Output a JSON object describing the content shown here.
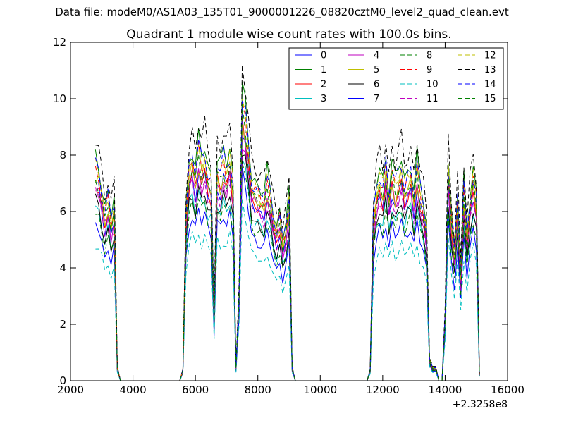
{
  "suptitle": "Data file: modeM0/AS1A03_135T01_9000001226_08820cztM0_level2_quad_clean.evt",
  "chart_data": {
    "type": "line",
    "title": "Quadrant 1 module wise count rates with 100.0s bins.",
    "xlabel": "",
    "ylabel": "",
    "xlim": [
      2000,
      16000
    ],
    "ylim": [
      0,
      12
    ],
    "xticks": [
      "2000",
      "4000",
      "6000",
      "8000",
      "10000",
      "12000",
      "14000",
      "16000"
    ],
    "yticks": [
      "0",
      "2",
      "4",
      "6",
      "8",
      "10",
      "12"
    ],
    "x_offset_label": "+2.3258e8",
    "legend_position": "top-right",
    "legend_columns": 4,
    "x": [
      2800,
      2900,
      3000,
      3100,
      3200,
      3300,
      3400,
      3500,
      3600,
      3700,
      3800,
      3900,
      4000,
      4100,
      4200,
      4300,
      4400,
      4500,
      4600,
      4700,
      4800,
      4900,
      5000,
      5100,
      5200,
      5300,
      5400,
      5500,
      5600,
      5700,
      5800,
      5900,
      6000,
      6100,
      6200,
      6300,
      6400,
      6500,
      6600,
      6700,
      6800,
      6900,
      7000,
      7100,
      7200,
      7300,
      7400,
      7500,
      7600,
      7700,
      7800,
      7900,
      8000,
      8100,
      8200,
      8300,
      8400,
      8500,
      8600,
      8700,
      8800,
      8900,
      9000,
      9100,
      9200,
      9300,
      9400,
      9500,
      9600,
      9700,
      9800,
      9900,
      10000,
      10100,
      10200,
      10300,
      10400,
      10500,
      10600,
      10700,
      10800,
      10900,
      11000,
      11100,
      11200,
      11300,
      11400,
      11500,
      11600,
      11700,
      11800,
      11900,
      12000,
      12100,
      12200,
      12300,
      12400,
      12500,
      12600,
      12700,
      12800,
      12900,
      13000,
      13100,
      13200,
      13300,
      13400,
      13500,
      13600,
      13700,
      13800,
      13900,
      14000,
      14100,
      14200,
      14300,
      14400,
      14500,
      14600,
      14700,
      14800,
      14900,
      15000,
      15100,
      15200
    ],
    "profile": [
      1.0,
      0.97,
      0.88,
      0.78,
      0.85,
      0.74,
      0.82,
      0.06,
      0,
      0,
      0,
      0,
      0,
      0,
      0,
      0,
      0,
      0,
      0,
      0,
      0,
      0,
      0,
      0,
      0,
      0,
      0,
      0,
      0.05,
      0.78,
      1.0,
      1.05,
      0.96,
      1.08,
      1.0,
      1.05,
      0.96,
      0.93,
      0.3,
      1.0,
      0.96,
      1.03,
      0.98,
      1.05,
      0.92,
      0.06,
      0.4,
      1.3,
      1.22,
      1.08,
      0.92,
      0.9,
      0.88,
      0.86,
      0.84,
      0.93,
      0.86,
      0.76,
      0.7,
      0.76,
      0.64,
      0.72,
      0.84,
      0.06,
      0,
      0,
      0,
      0,
      0,
      0,
      0,
      0,
      0,
      0,
      0,
      0,
      0,
      0,
      0,
      0,
      0,
      0,
      0,
      0,
      0,
      0,
      0,
      0,
      0.05,
      0.75,
      0.88,
      0.95,
      0.9,
      1.02,
      0.86,
      0.98,
      0.9,
      0.95,
      1.0,
      0.9,
      0.95,
      0.98,
      0.86,
      1.0,
      0.88,
      0.82,
      0.7,
      0.1,
      0.06,
      0.06,
      0,
      0,
      0.3,
      1.0,
      0.76,
      0.6,
      0.86,
      0.5,
      0.9,
      0.66,
      0.85,
      0.96,
      0.85,
      0.03
    ],
    "base_levels": [
      6.9,
      7.9,
      7.0,
      6.2,
      6.9,
      7.2,
      6.3,
      5.6,
      6.0,
      7.5,
      4.9,
      6.7,
      7.6,
      8.5,
      7.7,
      7.2
    ],
    "series": [
      {
        "name": "0",
        "color": "#0000ff",
        "dashed": false
      },
      {
        "name": "1",
        "color": "#008000",
        "dashed": false
      },
      {
        "name": "2",
        "color": "#ff0000",
        "dashed": false
      },
      {
        "name": "3",
        "color": "#00bfbf",
        "dashed": false
      },
      {
        "name": "4",
        "color": "#bf00bf",
        "dashed": false
      },
      {
        "name": "5",
        "color": "#bfbf00",
        "dashed": false
      },
      {
        "name": "6",
        "color": "#000000",
        "dashed": false
      },
      {
        "name": "7",
        "color": "#0000ff",
        "dashed": false
      },
      {
        "name": "8",
        "color": "#008000",
        "dashed": true
      },
      {
        "name": "9",
        "color": "#ff0000",
        "dashed": true
      },
      {
        "name": "10",
        "color": "#00bfbf",
        "dashed": true
      },
      {
        "name": "11",
        "color": "#bf00bf",
        "dashed": true
      },
      {
        "name": "12",
        "color": "#bfbf00",
        "dashed": true
      },
      {
        "name": "13",
        "color": "#000000",
        "dashed": true
      },
      {
        "name": "14",
        "color": "#0000ff",
        "dashed": true
      },
      {
        "name": "15",
        "color": "#008000",
        "dashed": true
      }
    ]
  }
}
